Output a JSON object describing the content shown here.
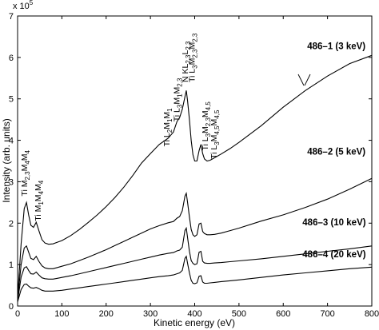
{
  "chart_data": {
    "type": "line",
    "xlabel": "Kinetic energy (eV)",
    "ylabel": "Intensity (arb. units)",
    "y_exponent_label": "x 10",
    "y_exponent_power": "5",
    "xlim": [
      0,
      800
    ],
    "ylim": [
      0,
      7
    ],
    "xticks": [
      "0",
      "100",
      "200",
      "300",
      "400",
      "500",
      "600",
      "700",
      "800"
    ],
    "yticks": [
      "0",
      "1",
      "2",
      "3",
      "4",
      "5",
      "6",
      "7"
    ],
    "grid": false,
    "series": [
      {
        "name": "486–1 (3 keV)",
        "x": [
          0,
          8,
          15,
          20,
          25,
          30,
          36,
          42,
          48,
          55,
          62,
          70,
          80,
          90,
          100,
          120,
          140,
          160,
          180,
          200,
          220,
          240,
          260,
          280,
          300,
          320,
          340,
          352,
          360,
          366,
          372,
          378,
          381,
          384,
          388,
          392,
          396,
          400,
          405,
          410,
          414,
          418,
          422,
          428,
          435,
          445,
          460,
          480,
          500,
          550,
          600,
          650,
          700,
          750,
          800
        ],
        "y": [
          0.2,
          1.5,
          2.35,
          2.5,
          2.2,
          1.95,
          1.9,
          2.02,
          1.82,
          1.6,
          1.52,
          1.49,
          1.5,
          1.54,
          1.58,
          1.7,
          1.85,
          2.02,
          2.2,
          2.4,
          2.62,
          2.87,
          3.15,
          3.45,
          3.68,
          3.9,
          4.05,
          4.2,
          4.45,
          4.55,
          4.75,
          5.05,
          5.2,
          4.95,
          4.5,
          4.0,
          3.65,
          3.5,
          3.5,
          3.75,
          3.9,
          3.68,
          3.55,
          3.5,
          3.52,
          3.58,
          3.67,
          3.8,
          3.95,
          4.35,
          4.8,
          5.2,
          5.55,
          5.85,
          6.05
        ]
      },
      {
        "name": "486–2 (5 keV)",
        "x": [
          0,
          8,
          15,
          20,
          25,
          30,
          36,
          42,
          48,
          55,
          62,
          70,
          80,
          90,
          100,
          120,
          140,
          160,
          180,
          200,
          220,
          240,
          260,
          280,
          300,
          320,
          340,
          352,
          360,
          366,
          372,
          378,
          381,
          384,
          388,
          392,
          396,
          400,
          405,
          410,
          414,
          418,
          422,
          428,
          435,
          445,
          460,
          480,
          500,
          550,
          600,
          650,
          700,
          750,
          800
        ],
        "y": [
          0.15,
          1.0,
          1.4,
          1.45,
          1.3,
          1.15,
          1.12,
          1.2,
          1.08,
          0.97,
          0.92,
          0.9,
          0.9,
          0.93,
          0.96,
          1.02,
          1.1,
          1.18,
          1.27,
          1.36,
          1.46,
          1.56,
          1.66,
          1.76,
          1.86,
          1.94,
          2.01,
          2.04,
          2.12,
          2.16,
          2.3,
          2.65,
          2.72,
          2.5,
          2.15,
          1.85,
          1.72,
          1.68,
          1.72,
          1.98,
          2.0,
          1.8,
          1.75,
          1.72,
          1.72,
          1.73,
          1.76,
          1.82,
          1.88,
          2.05,
          2.2,
          2.38,
          2.58,
          2.82,
          3.08
        ]
      },
      {
        "name": "486–3 (10 keV)",
        "x": [
          0,
          8,
          15,
          20,
          25,
          30,
          36,
          42,
          48,
          55,
          62,
          70,
          80,
          90,
          100,
          120,
          140,
          160,
          180,
          200,
          220,
          240,
          260,
          280,
          300,
          320,
          340,
          352,
          360,
          366,
          372,
          378,
          381,
          384,
          388,
          392,
          396,
          400,
          405,
          410,
          414,
          418,
          422,
          428,
          435,
          445,
          460,
          480,
          500,
          550,
          600,
          650,
          700,
          750,
          800
        ],
        "y": [
          0.12,
          0.7,
          0.92,
          0.95,
          0.86,
          0.78,
          0.77,
          0.82,
          0.75,
          0.68,
          0.66,
          0.65,
          0.65,
          0.67,
          0.69,
          0.73,
          0.78,
          0.83,
          0.88,
          0.93,
          0.98,
          1.03,
          1.08,
          1.13,
          1.18,
          1.23,
          1.27,
          1.29,
          1.33,
          1.35,
          1.42,
          1.82,
          1.88,
          1.65,
          1.32,
          1.1,
          1.03,
          1.0,
          1.02,
          1.3,
          1.32,
          1.08,
          1.04,
          1.03,
          1.03,
          1.04,
          1.05,
          1.07,
          1.09,
          1.14,
          1.2,
          1.26,
          1.32,
          1.38,
          1.45
        ]
      },
      {
        "name": "486–4 (20 keV)",
        "x": [
          0,
          8,
          15,
          20,
          25,
          30,
          36,
          42,
          48,
          55,
          62,
          70,
          80,
          90,
          100,
          120,
          140,
          160,
          180,
          200,
          220,
          240,
          260,
          280,
          300,
          320,
          340,
          352,
          360,
          366,
          372,
          378,
          381,
          384,
          388,
          392,
          396,
          400,
          405,
          410,
          414,
          418,
          422,
          428,
          435,
          445,
          460,
          480,
          500,
          550,
          600,
          650,
          700,
          750,
          800
        ],
        "y": [
          0.1,
          0.4,
          0.52,
          0.53,
          0.48,
          0.44,
          0.43,
          0.45,
          0.42,
          0.38,
          0.36,
          0.36,
          0.36,
          0.37,
          0.38,
          0.41,
          0.44,
          0.47,
          0.5,
          0.53,
          0.56,
          0.59,
          0.62,
          0.65,
          0.68,
          0.71,
          0.73,
          0.75,
          0.78,
          0.8,
          0.86,
          1.15,
          1.2,
          1.03,
          0.8,
          0.62,
          0.55,
          0.54,
          0.56,
          0.72,
          0.73,
          0.58,
          0.55,
          0.55,
          0.56,
          0.57,
          0.59,
          0.61,
          0.63,
          0.69,
          0.75,
          0.8,
          0.85,
          0.9,
          0.94
        ]
      }
    ],
    "series_labels": [
      {
        "id": "486-1",
        "text": "486–1 (3 keV)",
        "x": 720,
        "y": 6.2
      },
      {
        "id": "486-2",
        "text": "486–2 (5 keV)",
        "x": 720,
        "y": 3.65
      },
      {
        "id": "486-3",
        "text": "486–3 (10 keV)",
        "x": 715,
        "y": 1.95
      },
      {
        "id": "486-4",
        "text": "486–4 (20 keV)",
        "x": 715,
        "y": 1.18
      }
    ],
    "annotations": [
      {
        "text": "Ti M",
        "subs": [
          "2,3",
          "M",
          "4",
          "M",
          "4"
        ],
        "x": 22,
        "y": 2.65
      },
      {
        "text": "Ti M",
        "subs": [
          "1",
          "M",
          "4",
          "M",
          "4"
        ],
        "x": 52,
        "y": 2.05
      },
      {
        "text": "Ti L",
        "subs": [
          "2",
          "M",
          "1",
          "M",
          "1"
        ],
        "x": 343,
        "y": 3.85
      },
      {
        "text": "Ti L",
        "subs": [
          "3",
          "M",
          "1",
          "M",
          "2,3"
        ],
        "x": 366,
        "y": 4.45
      },
      {
        "text": "N KL",
        "subs": [
          "2,3",
          "L",
          "2,3"
        ],
        "x": 385,
        "y": 5.4
      },
      {
        "text": "Ti L",
        "subs": [
          "3",
          "M",
          "2,3",
          "M",
          "2,3"
        ],
        "x": 400,
        "y": 5.4
      },
      {
        "text": "Ti L",
        "subs": [
          "3",
          "M",
          "2,3",
          "M",
          "4,5"
        ],
        "x": 430,
        "y": 3.75
      },
      {
        "text": "Ti L",
        "subs": [
          "3",
          "M",
          "4,5",
          "M",
          "4,5"
        ],
        "x": 450,
        "y": 3.55
      }
    ]
  }
}
